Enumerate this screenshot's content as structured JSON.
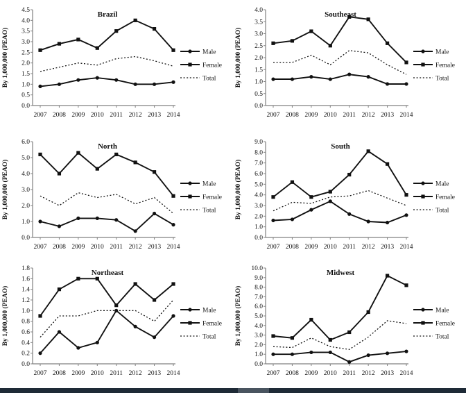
{
  "page": {
    "background": "#ffffff"
  },
  "colors": {
    "line": "#111111",
    "text": "#111111",
    "axis": "#808080",
    "bottom_bar": "#1e2a36",
    "bottom_bar_thumb": "#49545f"
  },
  "bottom_bar": {
    "kind": "horizontal-scrollbar"
  },
  "chart_data": [
    {
      "type": "line",
      "title": "Brazil",
      "ylabel": "By 1,000,000 (PEAO)",
      "ylim": [
        0,
        4.5
      ],
      "ytick_step": 0.5,
      "grid": false,
      "legend_position": "right",
      "categories": [
        "2007",
        "2008",
        "2009",
        "2010",
        "2011",
        "2012",
        "2013",
        "2014"
      ],
      "series": [
        {
          "name": "Male",
          "line": "solid",
          "marker": "circle",
          "values": [
            0.9,
            1.0,
            1.2,
            1.3,
            1.2,
            1.0,
            1.0,
            1.1
          ]
        },
        {
          "name": "Female",
          "line": "solid",
          "marker": "square",
          "values": [
            2.6,
            2.9,
            3.1,
            2.7,
            3.5,
            4.0,
            3.6,
            2.6
          ]
        },
        {
          "name": "Total",
          "line": "dotted",
          "marker": "none",
          "values": [
            1.6,
            1.8,
            2.0,
            1.9,
            2.2,
            2.3,
            2.1,
            1.85
          ]
        }
      ]
    },
    {
      "type": "line",
      "title": "Southeast",
      "ylabel": "By 1,000,000 (PEAO)",
      "ylim": [
        0,
        4.0
      ],
      "ytick_step": 0.5,
      "grid": false,
      "legend_position": "right",
      "categories": [
        "2007",
        "2008",
        "2009",
        "2010",
        "2011",
        "2012",
        "2013",
        "2014"
      ],
      "series": [
        {
          "name": "Male",
          "line": "solid",
          "marker": "circle",
          "values": [
            1.1,
            1.1,
            1.2,
            1.1,
            1.3,
            1.2,
            0.9,
            0.9
          ]
        },
        {
          "name": "Female",
          "line": "solid",
          "marker": "square",
          "values": [
            2.6,
            2.7,
            3.1,
            2.5,
            3.7,
            3.6,
            2.6,
            1.8
          ]
        },
        {
          "name": "Total",
          "line": "dotted",
          "marker": "none",
          "values": [
            1.8,
            1.8,
            2.1,
            1.7,
            2.3,
            2.2,
            1.7,
            1.3
          ]
        }
      ]
    },
    {
      "type": "line",
      "title": "North",
      "ylabel": "By 1,000,000 (PEAO)",
      "ylim": [
        0,
        6.0
      ],
      "ytick_step": 1.0,
      "grid": false,
      "legend_position": "right",
      "categories": [
        "2007",
        "2008",
        "2009",
        "2010",
        "2011",
        "2012",
        "2013",
        "2014"
      ],
      "series": [
        {
          "name": "Male",
          "line": "solid",
          "marker": "circle",
          "values": [
            1.0,
            0.7,
            1.2,
            1.2,
            1.1,
            0.4,
            1.5,
            0.8
          ]
        },
        {
          "name": "Female",
          "line": "solid",
          "marker": "square",
          "values": [
            5.2,
            4.0,
            5.3,
            4.3,
            5.2,
            4.7,
            4.1,
            2.6
          ]
        },
        {
          "name": "Total",
          "line": "dotted",
          "marker": "none",
          "values": [
            2.6,
            2.0,
            2.8,
            2.5,
            2.7,
            2.1,
            2.5,
            1.5
          ]
        }
      ]
    },
    {
      "type": "line",
      "title": "South",
      "ylabel": "By 1,000,000 (PEAO)",
      "ylim": [
        0,
        9.0
      ],
      "ytick_step": 1.0,
      "grid": false,
      "legend_position": "right",
      "categories": [
        "2007",
        "2008",
        "2009",
        "2010",
        "2011",
        "2012",
        "2013",
        "2014"
      ],
      "series": [
        {
          "name": "Male",
          "line": "solid",
          "marker": "circle",
          "values": [
            1.6,
            1.7,
            2.6,
            3.4,
            2.2,
            1.5,
            1.4,
            2.1
          ]
        },
        {
          "name": "Female",
          "line": "solid",
          "marker": "square",
          "values": [
            3.8,
            5.2,
            3.8,
            4.3,
            5.9,
            8.1,
            6.9,
            4.0
          ]
        },
        {
          "name": "Total",
          "line": "dotted",
          "marker": "none",
          "values": [
            2.5,
            3.3,
            3.2,
            3.8,
            3.9,
            4.4,
            3.7,
            3.0
          ]
        }
      ]
    },
    {
      "type": "line",
      "title": "Northeast",
      "ylabel": "By 1,000,000 (PEAO)",
      "ylim": [
        0,
        1.8
      ],
      "ytick_step": 0.2,
      "grid": false,
      "legend_position": "right",
      "categories": [
        "2007",
        "2008",
        "2009",
        "2010",
        "2011",
        "2012",
        "2013",
        "2014"
      ],
      "series": [
        {
          "name": "Male",
          "line": "solid",
          "marker": "circle",
          "values": [
            0.2,
            0.6,
            0.3,
            0.4,
            1.0,
            0.7,
            0.5,
            0.9
          ]
        },
        {
          "name": "Female",
          "line": "solid",
          "marker": "square",
          "values": [
            0.9,
            1.4,
            1.6,
            1.6,
            1.1,
            1.5,
            1.2,
            1.5
          ]
        },
        {
          "name": "Total",
          "line": "dotted",
          "marker": "none",
          "values": [
            0.5,
            0.9,
            0.9,
            1.0,
            1.0,
            1.0,
            0.8,
            1.2
          ]
        }
      ]
    },
    {
      "type": "line",
      "title": "Midwest",
      "ylabel": "By 1,000,000 (PEAO)",
      "ylim": [
        0,
        10.0
      ],
      "ytick_step": 1.0,
      "grid": false,
      "legend_position": "right",
      "categories": [
        "2007",
        "2008",
        "2009",
        "2010",
        "2011",
        "2012",
        "2013",
        "2014"
      ],
      "series": [
        {
          "name": "Male",
          "line": "solid",
          "marker": "circle",
          "values": [
            1.0,
            1.0,
            1.2,
            1.2,
            0.2,
            0.9,
            1.1,
            1.3
          ]
        },
        {
          "name": "Female",
          "line": "solid",
          "marker": "square",
          "values": [
            2.9,
            2.7,
            4.6,
            2.5,
            3.3,
            5.4,
            9.2,
            8.2
          ]
        },
        {
          "name": "Total",
          "line": "dotted",
          "marker": "none",
          "values": [
            1.8,
            1.7,
            2.7,
            1.8,
            1.5,
            2.8,
            4.5,
            4.2
          ]
        }
      ]
    }
  ]
}
